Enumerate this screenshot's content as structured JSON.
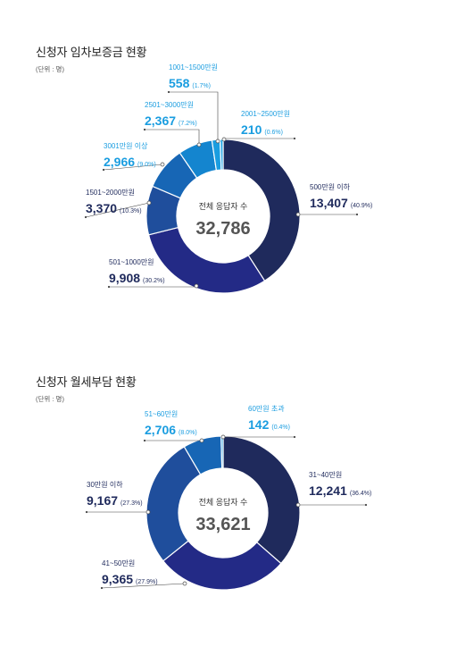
{
  "sections": [
    {
      "title": "신청자 임차보증금 현황",
      "unit": "(단위 : 명)",
      "center_label": "전체 응답자 수",
      "center_value": "32,786"
    },
    {
      "title": "신청자 월세부담 현황",
      "unit": "(단위 : 명)",
      "center_label": "전체 응답자 수",
      "center_value": "33,621"
    }
  ],
  "chart_data": [
    {
      "type": "pie",
      "title": "신청자 임차보증금 현황",
      "unit": "(단위 : 명)",
      "total": 32786,
      "slices": [
        {
          "label": "500만원 이하",
          "value": 13407,
          "value_text": "13,407",
          "pct_text": "(40.9%)",
          "color": "#1f2a5c"
        },
        {
          "label": "501~1000만원",
          "value": 9908,
          "value_text": "9,908",
          "pct_text": "(30.2%)",
          "color": "#232a86"
        },
        {
          "label": "1501~2000만원",
          "value": 3370,
          "value_text": "3,370",
          "pct_text": "(10.3%)",
          "color": "#1f4e9c"
        },
        {
          "label": "3001만원 이상",
          "value": 2966,
          "value_text": "2,966",
          "pct_text": "(9.0%)",
          "color": "#1766b5"
        },
        {
          "label": "2501~3000만원",
          "value": 2367,
          "value_text": "2,367",
          "pct_text": "(7.2%)",
          "color": "#1485cf"
        },
        {
          "label": "1001~1500만원",
          "value": 558,
          "value_text": "558",
          "pct_text": "(1.7%)",
          "color": "#1a9de0"
        },
        {
          "label": "2001~2500만원",
          "value": 210,
          "value_text": "210",
          "pct_text": "(0.6%)",
          "color": "#2ba9e6"
        }
      ]
    },
    {
      "type": "pie",
      "title": "신청자 월세부담 현황",
      "unit": "(단위 : 명)",
      "total": 33621,
      "slices": [
        {
          "label": "31~40만원",
          "value": 12241,
          "value_text": "12,241",
          "pct_text": "(36.4%)",
          "color": "#1f2a5c"
        },
        {
          "label": "41~50만원",
          "value": 9365,
          "value_text": "9,365",
          "pct_text": "(27.9%)",
          "color": "#232a86"
        },
        {
          "label": "30만원 이하",
          "value": 9167,
          "value_text": "9,167",
          "pct_text": "(27.3%)",
          "color": "#1f4e9c"
        },
        {
          "label": "51~60만원",
          "value": 2706,
          "value_text": "2,706",
          "pct_text": "(8.0%)",
          "color": "#1766b5"
        },
        {
          "label": "60만원 초과",
          "value": 142,
          "value_text": "142",
          "pct_text": "(0.4%)",
          "color": "#1a9de0"
        }
      ]
    }
  ],
  "colors": {
    "label_dark": "#1f2a5c",
    "label_light": "#1a9de0",
    "center_value": "#555555",
    "leader_line": "#444444"
  }
}
